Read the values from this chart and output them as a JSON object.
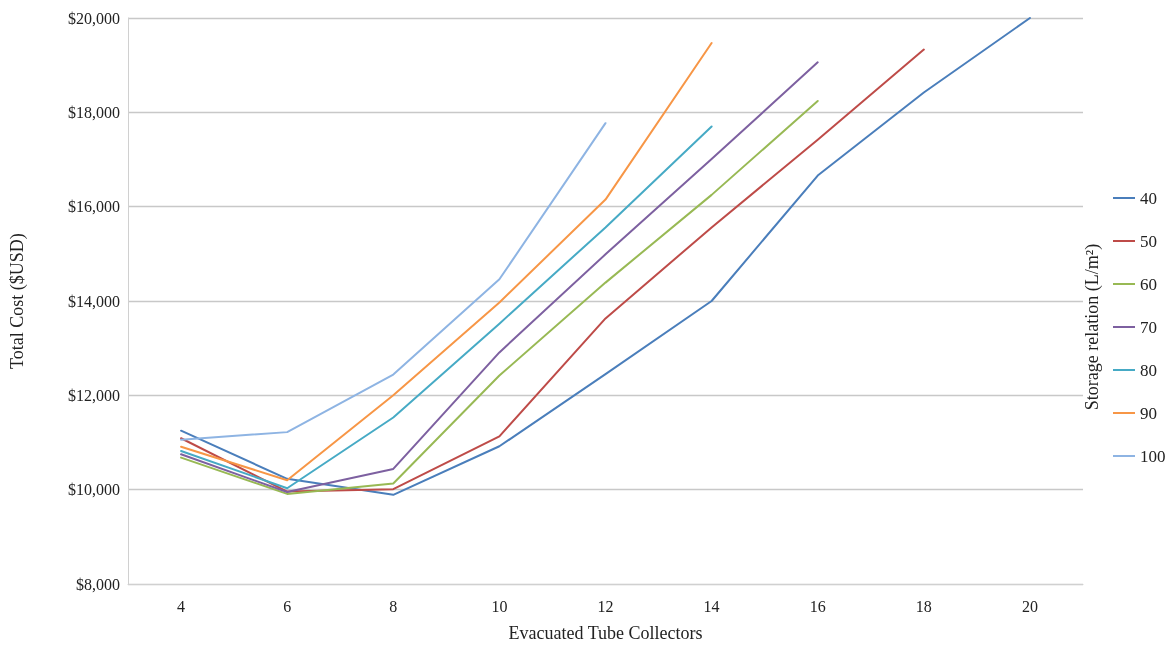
{
  "chart_data": {
    "type": "line",
    "xlabel": "Evacuated Tube Collectors",
    "ylabel": "Total Cost ($USD)",
    "legend_title": "Storage relation (L/m²)",
    "categories": [
      "4",
      "6",
      "8",
      "10",
      "12",
      "14",
      "16",
      "18",
      "20"
    ],
    "series": [
      {
        "name": "40",
        "color": "#4a7ebb",
        "values": [
          11250,
          10230,
          9890,
          10920,
          12450,
          14000,
          16660,
          18420,
          20000
        ]
      },
      {
        "name": "50",
        "color": "#be4b48",
        "values": [
          11090,
          9960,
          10010,
          11130,
          13630,
          15560,
          17420,
          19330,
          null
        ]
      },
      {
        "name": "60",
        "color": "#98b954",
        "values": [
          10680,
          9910,
          10130,
          12420,
          14390,
          16250,
          18240,
          null,
          null
        ]
      },
      {
        "name": "70",
        "color": "#7d60a0",
        "values": [
          10750,
          9950,
          10440,
          12910,
          14990,
          17010,
          19060,
          null,
          null
        ]
      },
      {
        "name": "80",
        "color": "#46aac5",
        "values": [
          10820,
          10030,
          11530,
          13520,
          15560,
          17700,
          null,
          null,
          null
        ]
      },
      {
        "name": "90",
        "color": "#f79646",
        "values": [
          10910,
          10200,
          12000,
          13970,
          16150,
          19470,
          null,
          null,
          null
        ]
      },
      {
        "name": "100",
        "color": "#8eb4e3",
        "values": [
          11060,
          11220,
          12440,
          14460,
          17770,
          null,
          null,
          null,
          null
        ]
      }
    ],
    "ylim": [
      8000,
      20000
    ],
    "yticks": [
      {
        "value": 8000,
        "label": "$8,000"
      },
      {
        "value": 10000,
        "label": "$10,000"
      },
      {
        "value": 12000,
        "label": "$12,000"
      },
      {
        "value": 14000,
        "label": "$14,000"
      },
      {
        "value": 16000,
        "label": "$16,000"
      },
      {
        "value": 18000,
        "label": "$18,000"
      },
      {
        "value": 20000,
        "label": "$20,000"
      }
    ],
    "grid": "y",
    "legend": "right",
    "marker": "none",
    "line_style": "solid"
  }
}
